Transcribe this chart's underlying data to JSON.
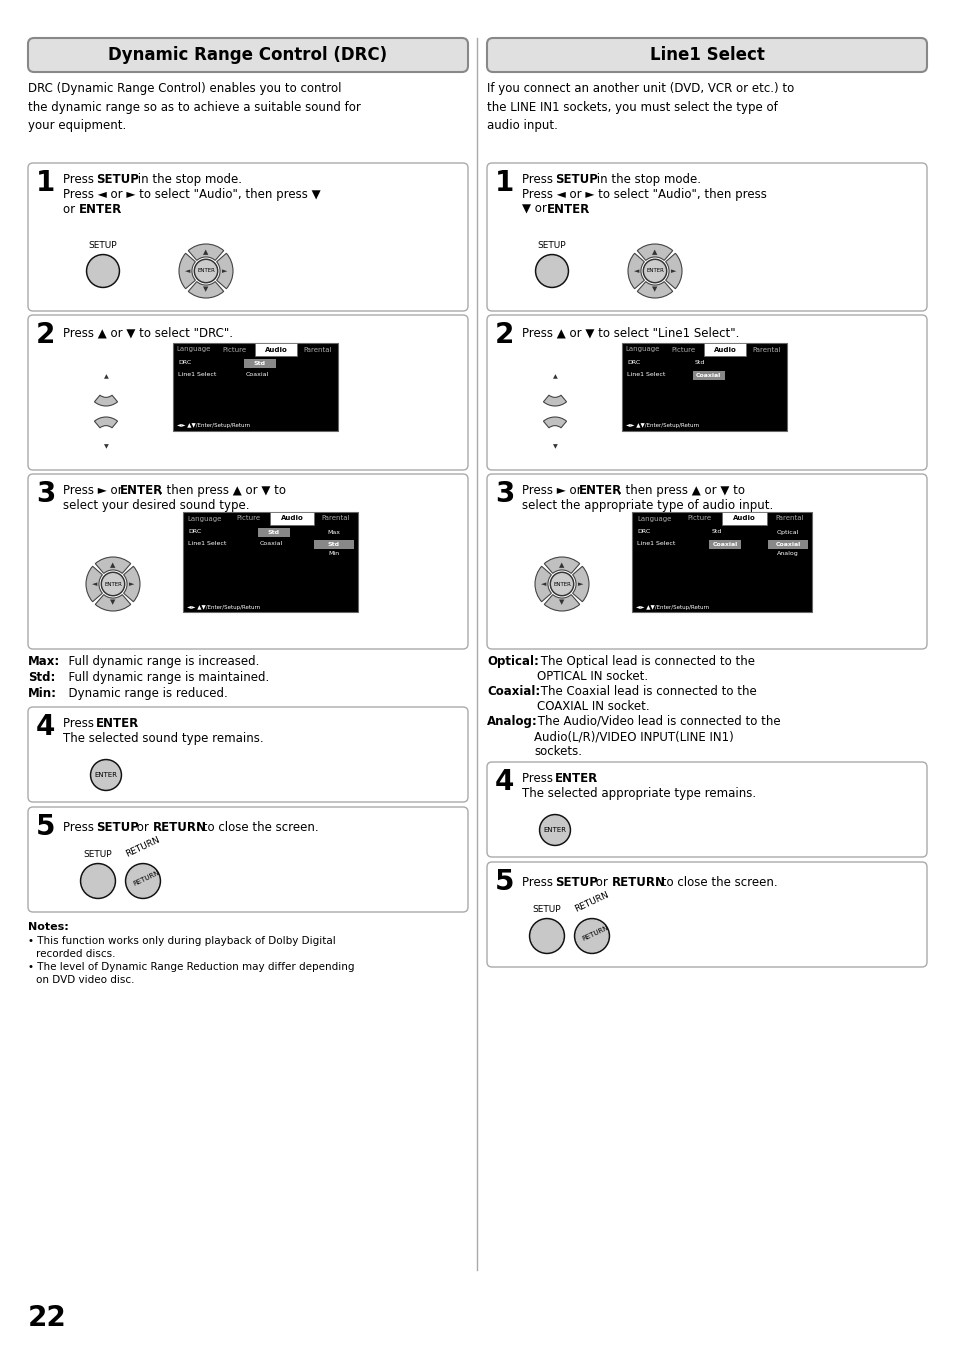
{
  "page_bg": "#ffffff",
  "page_number": "22",
  "left_title": "Dynamic Range Control (DRC)",
  "right_title": "Line1 Select",
  "screen_bg": "#000000",
  "screen_highlight": "#888888"
}
